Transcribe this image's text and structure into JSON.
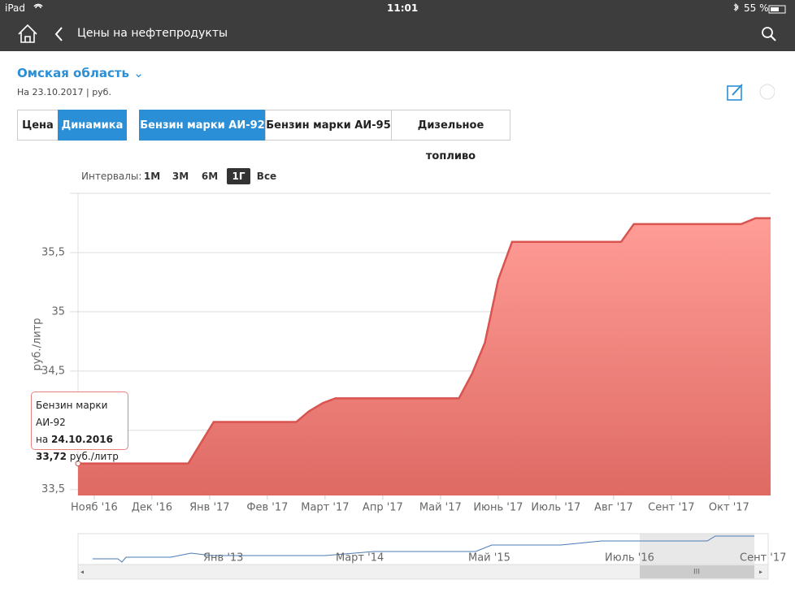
{
  "status_bar": {
    "device": "iPad",
    "time": "11:01",
    "battery": "55 %"
  },
  "header": {
    "title": "Цены на нефтепродукты"
  },
  "region": {
    "name": "Омская область",
    "date": "На 23.10.2017 | руб."
  },
  "view_tabs": [
    "Цена",
    "Динамика"
  ],
  "fuel_tabs": [
    "Бензин марки АИ-92",
    "Бензин марки АИ-95",
    "Дизельное топливо"
  ],
  "intervals": {
    "label": "Интервалы:",
    "options": [
      "1М",
      "3М",
      "6М",
      "1Г",
      "Все"
    ]
  },
  "tooltip": {
    "name": "Бензин марки АИ-92",
    "prefix": "на",
    "date": "24.10.2016",
    "value": "33,72",
    "unit": "руб./литр"
  },
  "navigator": {
    "labels": [
      "Янв '13",
      "Март '14",
      "Май '15",
      "Июль '16",
      "Сент '17"
    ],
    "handle": "III"
  },
  "chart_data": {
    "type": "area",
    "y_label": "руб./литр",
    "xlim": [
      -0.28,
      11.72
    ],
    "xticks": [
      {
        "value": 0,
        "label": "Нояб '16"
      },
      {
        "value": 1,
        "label": "Дек '16"
      },
      {
        "value": 2,
        "label": "Янв '17"
      },
      {
        "value": 3,
        "label": "Фев '17"
      },
      {
        "value": 4,
        "label": "Март '17"
      },
      {
        "value": 5,
        "label": "Апр '17"
      },
      {
        "value": 6,
        "label": "Май '17"
      },
      {
        "value": 7,
        "label": "Июнь '17"
      },
      {
        "value": 8,
        "label": "Июль '17"
      },
      {
        "value": 9,
        "label": "Авг '17"
      },
      {
        "value": 10,
        "label": "Сент '17"
      },
      {
        "value": 11,
        "label": "Окт '17"
      }
    ],
    "ylim": [
      33.45,
      36
    ],
    "yticks": [
      {
        "value": 33.5,
        "label": "33,5"
      },
      34,
      {
        "value": 34.5,
        "label": "34,5"
      },
      35,
      {
        "value": 35.5,
        "label": "35,5"
      }
    ],
    "grid": true,
    "series": [
      {
        "name": "Бензин марки АИ-92",
        "color": "#d9534f",
        "x": [
          -0.28,
          1.63,
          2.07,
          3.5,
          3.72,
          3.96,
          4.18,
          6.32,
          6.55,
          6.77,
          7.0,
          7.24,
          9.13,
          9.35,
          11.21,
          11.46,
          11.72
        ],
        "values": [
          33.72,
          33.72,
          34.07,
          34.07,
          34.16,
          34.23,
          34.27,
          34.27,
          34.48,
          34.74,
          35.27,
          35.59,
          35.59,
          35.74,
          35.74,
          35.79,
          35.79
        ]
      }
    ]
  }
}
